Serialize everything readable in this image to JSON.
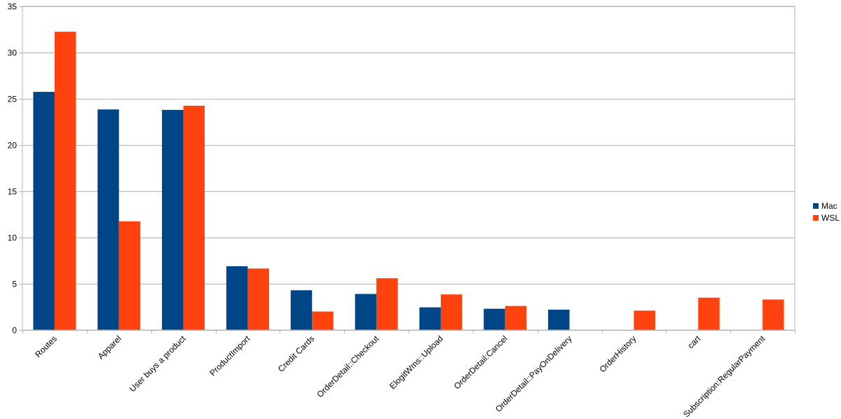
{
  "chart_data": {
    "type": "bar",
    "title": "",
    "xlabel": "",
    "ylabel": "",
    "ylim": [
      0,
      35
    ],
    "yticks": [
      0,
      5,
      10,
      15,
      20,
      25,
      30,
      35
    ],
    "grid": true,
    "legend_position": "right",
    "categories": [
      "Routes",
      "Apparel",
      "User buys a product",
      "ProductImport",
      "Credit Cards",
      "OrderDetail::Checkout",
      "ElogitWms::Upload",
      "OrderDetail:Cancel",
      "OrderDetail::PayOnDelivery",
      "OrderHistory",
      "cart",
      "Subscription:RegularPayment"
    ],
    "series": [
      {
        "name": "Mac",
        "color": "#004586",
        "values": [
          25.75,
          23.85,
          23.8,
          6.9,
          4.3,
          3.9,
          2.45,
          2.3,
          2.2,
          null,
          null,
          null
        ]
      },
      {
        "name": "WSL",
        "color": "#ff420e",
        "values": [
          32.25,
          11.75,
          24.25,
          6.65,
          2.0,
          5.6,
          3.85,
          2.6,
          null,
          2.1,
          3.5,
          3.3
        ]
      }
    ]
  }
}
